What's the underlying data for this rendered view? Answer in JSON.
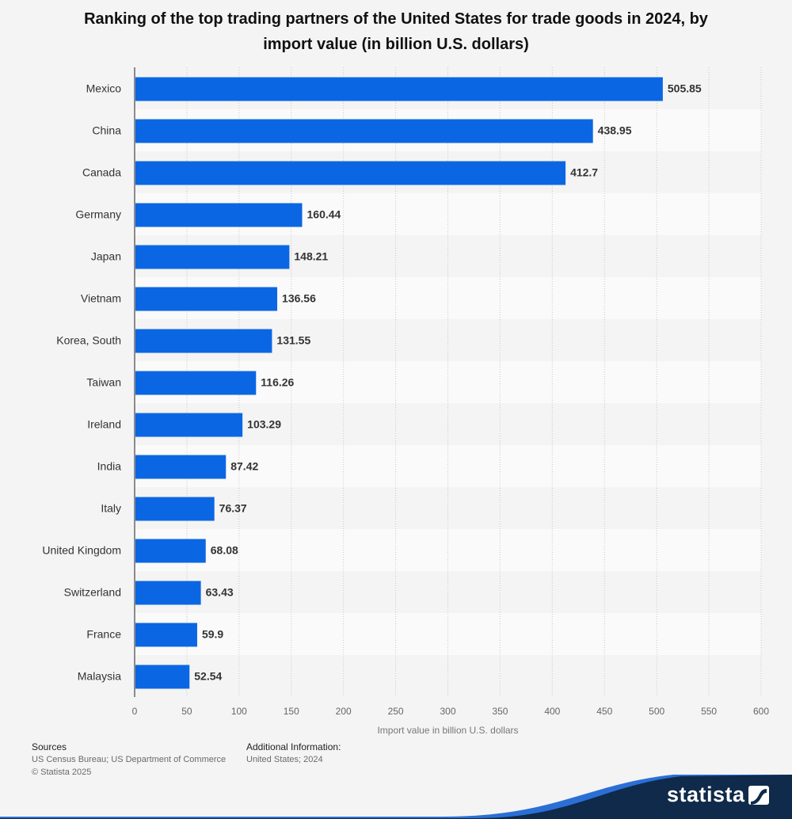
{
  "title": "Ranking of the top trading partners of the United States for trade goods in 2024, by import value (in billion U.S. dollars)",
  "chart_data": {
    "type": "bar",
    "orientation": "horizontal",
    "title": "Ranking of the top trading partners of the United States for trade goods in 2024, by import value (in billion U.S. dollars)",
    "categories": [
      "Mexico",
      "China",
      "Canada",
      "Germany",
      "Japan",
      "Vietnam",
      "Korea, South",
      "Taiwan",
      "Ireland",
      "India",
      "Italy",
      "United Kingdom",
      "Switzerland",
      "France",
      "Malaysia"
    ],
    "values": [
      505.85,
      438.95,
      412.7,
      160.44,
      148.21,
      136.56,
      131.55,
      116.26,
      103.29,
      87.42,
      76.37,
      68.08,
      63.43,
      59.9,
      52.54
    ],
    "value_labels": [
      "505.85",
      "438.95",
      "412.7",
      "160.44",
      "148.21",
      "136.56",
      "131.55",
      "116.26",
      "103.29",
      "87.42",
      "76.37",
      "68.08",
      "63.43",
      "59.9",
      "52.54"
    ],
    "xlabel": "Import value in billion U.S. dollars",
    "ylabel": "",
    "xlim": [
      0,
      600
    ],
    "xticks": [
      0,
      50,
      100,
      150,
      200,
      250,
      300,
      350,
      400,
      450,
      500,
      550,
      600
    ],
    "xtick_labels": [
      "0",
      "50",
      "100",
      "150",
      "200",
      "250",
      "300",
      "350",
      "400",
      "450",
      "500",
      "550",
      "600"
    ],
    "grid": true,
    "bar_color": "#0b66e4"
  },
  "footer": {
    "sources_heading": "Sources",
    "sources_text": "US Census Bureau; US Department of Commerce",
    "copyright": "© Statista 2025",
    "additional_heading": "Additional Information:",
    "additional_text": "United States; 2024"
  },
  "brand": {
    "logo_text": "statista",
    "logo_icon": "statista-logo-icon",
    "wave_color": "#0f2a4a"
  }
}
